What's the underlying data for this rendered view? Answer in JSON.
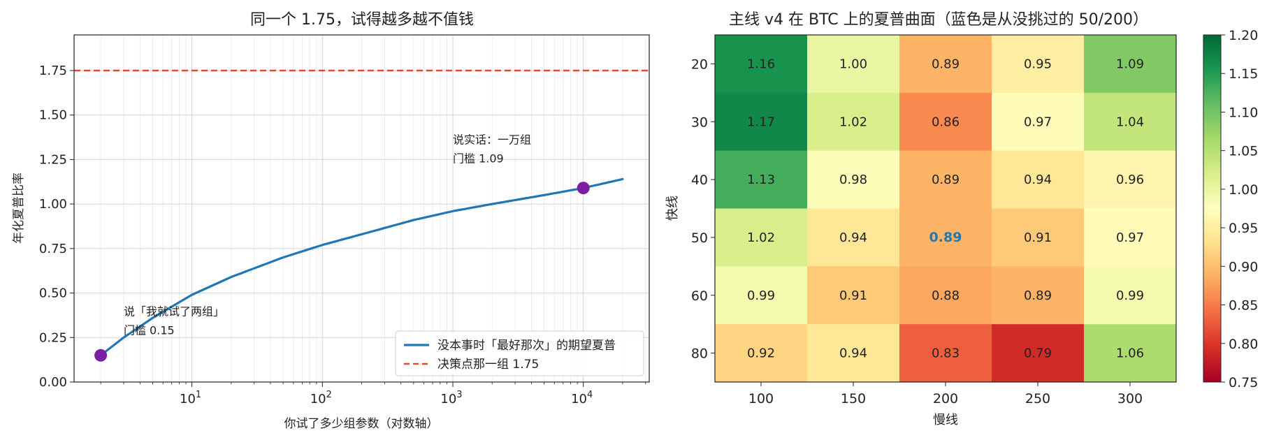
{
  "chart_data": [
    {
      "type": "line",
      "title": "同一个 1.75，试得越多越不值钱",
      "xlabel": "你试了多少组参数（对数轴）",
      "ylabel": "年化夏普比率",
      "xscale": "log",
      "xlim": [
        1.25,
        32000
      ],
      "ylim": [
        0,
        1.95
      ],
      "yticks": [
        "0.00",
        "0.25",
        "0.50",
        "0.75",
        "1.00",
        "1.25",
        "1.50",
        "1.75"
      ],
      "xticks": [
        {
          "base": "10",
          "exp": "1",
          "value": 10
        },
        {
          "base": "10",
          "exp": "2",
          "value": 100
        },
        {
          "base": "10",
          "exp": "3",
          "value": 1000
        },
        {
          "base": "10",
          "exp": "4",
          "value": 10000
        }
      ],
      "grid": true,
      "legend_position": "bottom-right",
      "series": [
        {
          "name": "没本事时「最好那次」的期望夏普",
          "color": "#1f77b4",
          "x": [
            2,
            3,
            5,
            10,
            20,
            50,
            100,
            200,
            500,
            1000,
            2000,
            5000,
            10000,
            20000
          ],
          "y": [
            0.15,
            0.25,
            0.36,
            0.49,
            0.59,
            0.7,
            0.77,
            0.83,
            0.91,
            0.96,
            1.0,
            1.05,
            1.09,
            1.14
          ]
        },
        {
          "name": "决策点那一组 1.75",
          "color": "#e8453c",
          "style": "dashed",
          "y_const": 1.75
        }
      ],
      "points": [
        {
          "x": 2,
          "y": 0.15,
          "color": "#7b1fa2"
        },
        {
          "x": 10000,
          "y": 1.09,
          "color": "#7b1fa2"
        }
      ],
      "annotations": [
        {
          "x": 3,
          "y": 0.375,
          "lines": [
            "说「我就试了两组」",
            "门槛 0.15"
          ]
        },
        {
          "x": 1000,
          "y": 1.34,
          "lines": [
            "说实话：一万组",
            "门槛 1.09"
          ]
        }
      ]
    },
    {
      "type": "heatmap",
      "title": "主线 v4 在 BTC 上的夏普曲面（蓝色是从没挑过的 50/200）",
      "xlabel": "慢线",
      "ylabel": "快线",
      "x_categories": [
        "100",
        "150",
        "200",
        "250",
        "300"
      ],
      "y_categories": [
        "20",
        "30",
        "40",
        "50",
        "60",
        "80"
      ],
      "values": [
        [
          1.16,
          1.0,
          0.89,
          0.95,
          1.09
        ],
        [
          1.17,
          1.02,
          0.86,
          0.97,
          1.04
        ],
        [
          1.13,
          0.98,
          0.89,
          0.94,
          0.96
        ],
        [
          1.02,
          0.94,
          0.89,
          0.91,
          0.97
        ],
        [
          0.99,
          0.91,
          0.88,
          0.89,
          0.99
        ],
        [
          0.92,
          0.94,
          0.83,
          0.79,
          1.06
        ]
      ],
      "highlight": {
        "row": 3,
        "col": 2,
        "color": "#1f77b4"
      },
      "colormap": "RdYlGn",
      "vmin": 0.75,
      "vmax": 1.2,
      "colorbar_ticks": [
        "0.75",
        "0.80",
        "0.85",
        "0.90",
        "0.95",
        "1.00",
        "1.05",
        "1.10",
        "1.15",
        "1.20"
      ]
    }
  ]
}
